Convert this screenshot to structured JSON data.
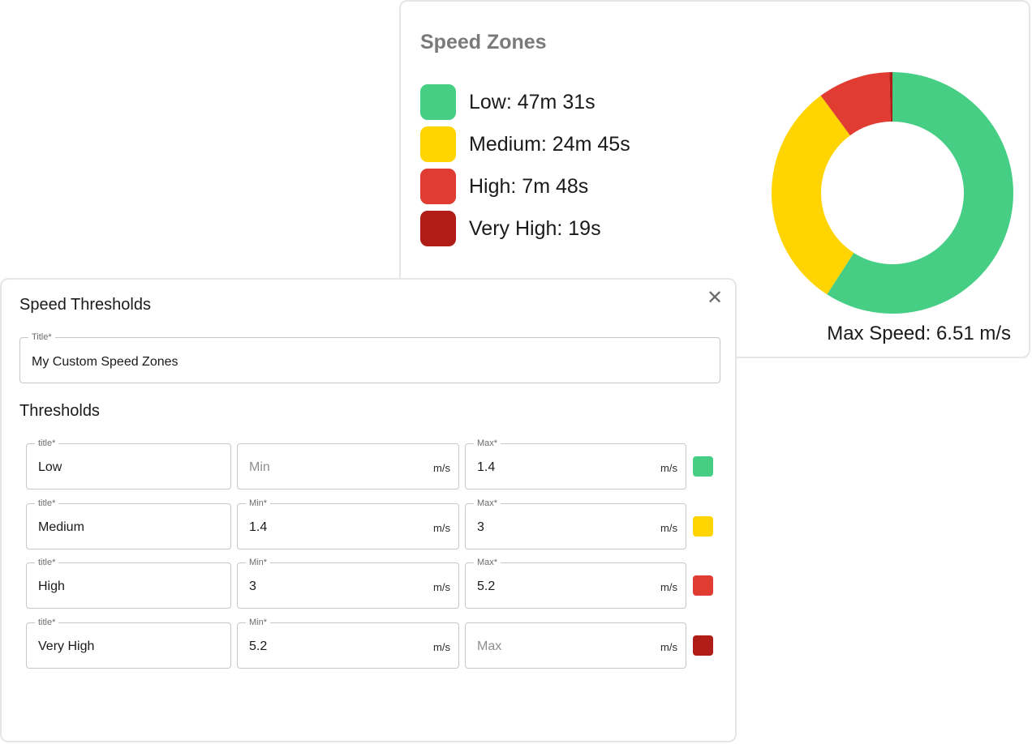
{
  "speed_zones": {
    "title": "Speed Zones",
    "legend": [
      {
        "label": "Low: 47m 31s",
        "color": "#46cf84"
      },
      {
        "label": "Medium: 24m 45s",
        "color": "#ffd400"
      },
      {
        "label": "High: 7m 48s",
        "color": "#e03c31"
      },
      {
        "label": "Very High: 19s",
        "color": "#b01c17"
      }
    ],
    "max_speed": "Max Speed: 6.51 m/s"
  },
  "chart_data": {
    "type": "pie",
    "title": "Speed Zones",
    "labels": [
      "Low",
      "Medium",
      "High",
      "Very High"
    ],
    "values": [
      2851,
      1485,
      468,
      19
    ],
    "colors": [
      "#46cf84",
      "#ffd400",
      "#e03c31",
      "#b01c17"
    ]
  },
  "dialog": {
    "title": "Speed Thresholds",
    "close_icon": "close-icon",
    "title_field": {
      "label": "Title*",
      "value": "My Custom Speed Zones"
    },
    "thresholds_heading": "Thresholds",
    "unit": "m/s",
    "rows": [
      {
        "title_label": "title*",
        "title": "Low",
        "min_label": "",
        "min": "",
        "min_placeholder": "Min",
        "max_label": "Max*",
        "max": "1.4",
        "max_placeholder": "",
        "color": "#46cf84"
      },
      {
        "title_label": "title*",
        "title": "Medium",
        "min_label": "Min*",
        "min": "1.4",
        "min_placeholder": "",
        "max_label": "Max*",
        "max": "3",
        "max_placeholder": "",
        "color": "#ffd400"
      },
      {
        "title_label": "title*",
        "title": "High",
        "min_label": "Min*",
        "min": "3",
        "min_placeholder": "",
        "max_label": "Max*",
        "max": "5.2",
        "max_placeholder": "",
        "color": "#e03c31"
      },
      {
        "title_label": "title*",
        "title": "Very High",
        "min_label": "Min*",
        "min": "5.2",
        "min_placeholder": "",
        "max_label": "",
        "max": "",
        "max_placeholder": "Max",
        "color": "#b01c17"
      }
    ]
  }
}
